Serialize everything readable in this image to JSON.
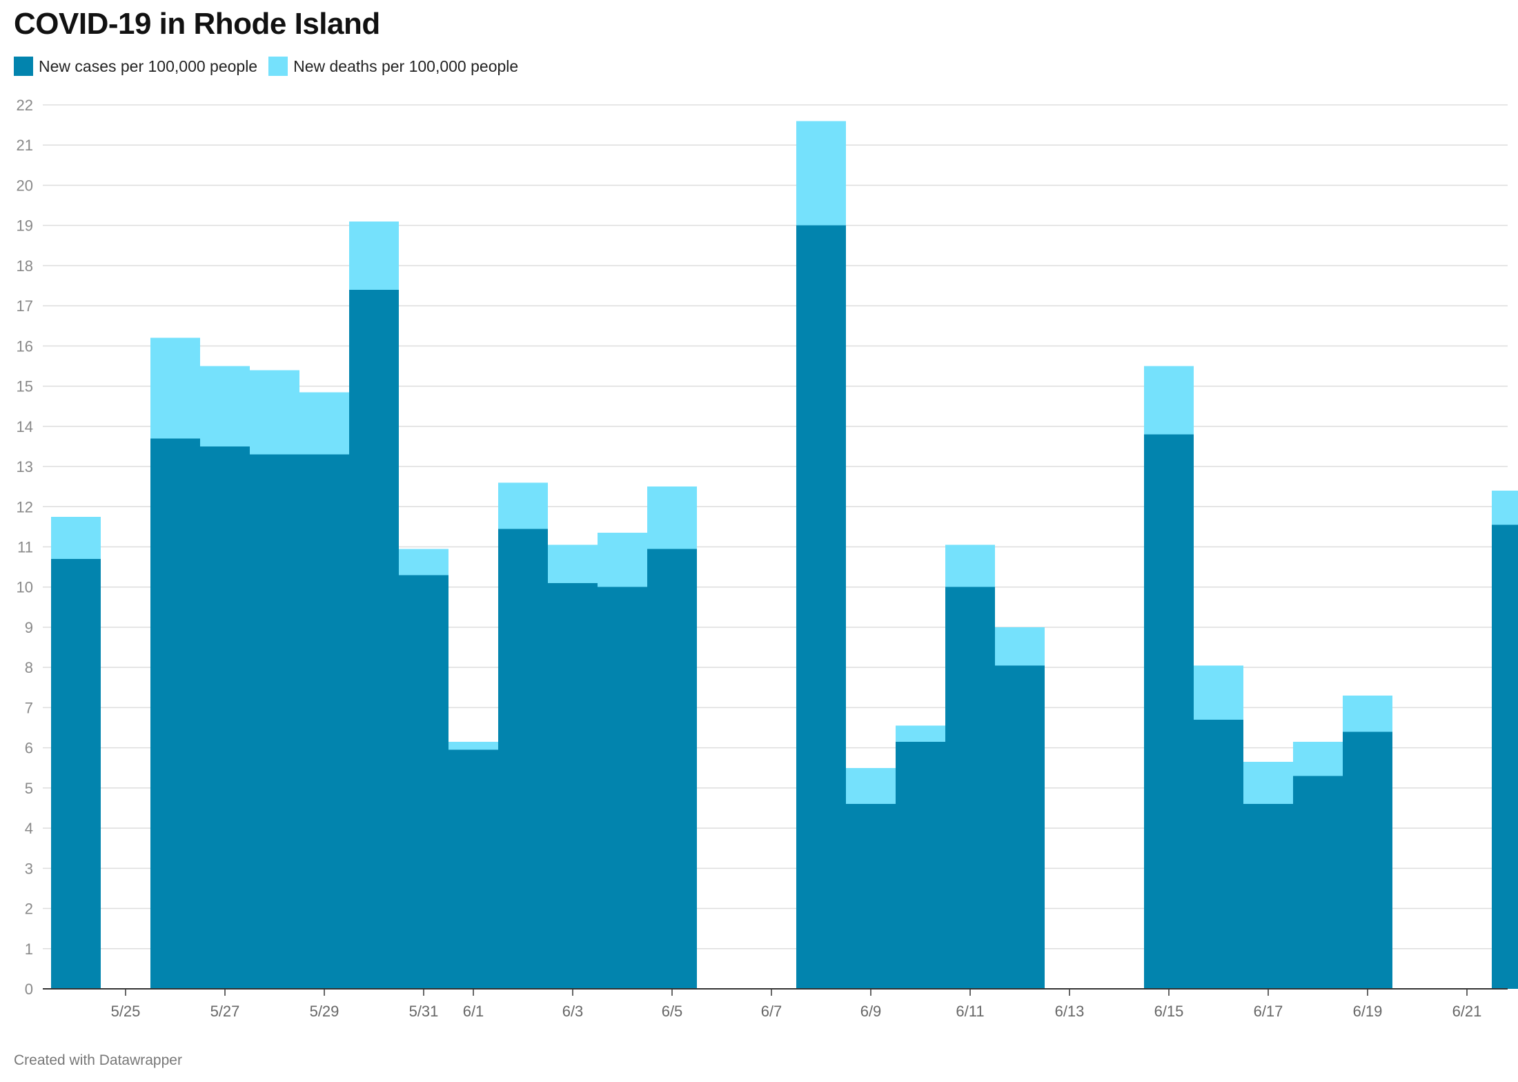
{
  "chart_data": {
    "type": "bar",
    "stacked": true,
    "title": "COVID-19 in Rhode Island",
    "xlabel": "",
    "ylabel": "",
    "ylim": [
      0,
      22
    ],
    "yticks": [
      0,
      1,
      2,
      3,
      4,
      5,
      6,
      7,
      8,
      9,
      10,
      11,
      12,
      13,
      14,
      15,
      16,
      17,
      18,
      19,
      20,
      21,
      22
    ],
    "grid": true,
    "legend_position": "top-left",
    "x_start_date": "5/24",
    "categories": [
      "5/24",
      "5/25",
      "5/26",
      "5/27",
      "5/28",
      "5/29",
      "5/30",
      "5/31",
      "6/1",
      "6/2",
      "6/3",
      "6/4",
      "6/5",
      "6/6",
      "6/7",
      "6/8",
      "6/9",
      "6/10",
      "6/11",
      "6/12",
      "6/13",
      "6/14",
      "6/15",
      "6/16",
      "6/17",
      "6/18",
      "6/19",
      "6/20",
      "6/21",
      "6/22"
    ],
    "xtick_labels": [
      "5/25",
      "5/27",
      "5/29",
      "5/31",
      "6/1",
      "6/3",
      "6/5",
      "6/7",
      "6/9",
      "6/11",
      "6/13",
      "6/15",
      "6/17",
      "6/19",
      "6/21"
    ],
    "series": [
      {
        "name": "New cases per 100,000 people",
        "color": "#0284ae",
        "values": [
          10.7,
          0,
          13.7,
          13.5,
          13.3,
          13.3,
          17.4,
          10.3,
          5.95,
          11.45,
          10.1,
          10.0,
          10.95,
          0,
          0,
          19.0,
          4.6,
          6.15,
          10.0,
          8.05,
          0,
          0,
          13.8,
          6.7,
          4.6,
          5.3,
          6.4,
          0,
          0,
          11.55
        ]
      },
      {
        "name": "New deaths per 100,000 people",
        "color": "#75e1fc",
        "values": [
          1.05,
          0,
          2.5,
          2.0,
          2.1,
          1.55,
          1.7,
          0.65,
          0.2,
          1.15,
          0.95,
          1.35,
          1.55,
          0,
          0,
          2.6,
          0.9,
          0.4,
          1.05,
          0.95,
          0,
          0,
          1.7,
          1.35,
          1.05,
          0.85,
          0.9,
          0,
          0,
          0.85
        ]
      }
    ]
  },
  "footer": "Created with Datawrapper"
}
